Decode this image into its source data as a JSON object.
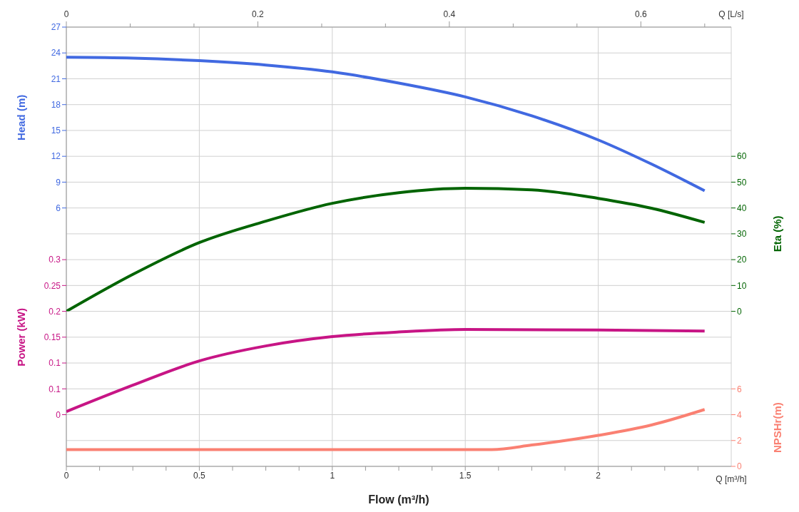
{
  "chart_data": [
    {
      "type": "line",
      "x2label": "Q [L/s]",
      "ylabel": "Head (m)",
      "xlim": [
        0,
        2.5
      ],
      "tick_labels": "y",
      "x2lim": [
        0,
        0.6944
      ],
      "x2ticks": [
        0,
        {
          "value": 0.0667,
          "label": null
        },
        {
          "value": 0.1333,
          "label": null
        },
        0.2,
        {
          "value": 0.2667,
          "label": null
        },
        {
          "value": 0.3333,
          "label": null
        },
        0.4,
        {
          "value": 0.4667,
          "label": null
        },
        {
          "value": 0.5333,
          "label": null
        },
        0.6,
        {
          "value": 0.6667,
          "label": null
        }
      ],
      "ylim": [
        6,
        27
      ],
      "yticks": [
        6,
        9,
        12,
        15,
        18,
        21,
        24,
        27
      ],
      "marker": "none",
      "line_style": "solid",
      "series": [
        {
          "color": "#4169e1",
          "x": [
            0,
            0.25,
            0.5,
            0.75,
            1,
            1.25,
            1.5,
            1.75,
            2,
            2.2,
            2.4
          ],
          "values": [
            23.5,
            23.4,
            23.1,
            22.6,
            21.8,
            20.5,
            18.9,
            16.7,
            13.9,
            11.1,
            8.0
          ]
        }
      ]
    },
    {
      "type": "line",
      "ylabel": "Eta (%)",
      "xlim": [
        0,
        2.5
      ],
      "ylim": [
        0,
        60
      ],
      "yticks": [
        0,
        10,
        20,
        30,
        40,
        50,
        60
      ],
      "tick_labels": "y",
      "marker": "none",
      "line_style": "solid",
      "series": [
        {
          "color": "#006400",
          "x": [
            0,
            0.25,
            0.5,
            0.75,
            1,
            1.25,
            1.5,
            1.75,
            2,
            2.2,
            2.4
          ],
          "values": [
            0,
            14.3,
            26.6,
            34.9,
            41.8,
            45.9,
            47.6,
            47.0,
            43.7,
            39.9,
            34.4
          ]
        }
      ]
    },
    {
      "type": "line",
      "ylabel": "Power (kW)",
      "xlim": [
        0,
        2.5
      ],
      "ylim": [
        0,
        0.3
      ],
      "yticks": [
        0,
        {
          "value": 0.05,
          "label": "0.1"
        },
        0.1,
        0.15,
        0.2,
        0.25,
        0.3
      ],
      "tick_labels": "y",
      "marker": "none",
      "line_style": "solid",
      "series": [
        {
          "color": "#c71585",
          "x": [
            0,
            0.25,
            0.5,
            0.75,
            1,
            1.25,
            1.5,
            2,
            2.4
          ],
          "values": [
            0.006,
            0.057,
            0.104,
            0.133,
            0.151,
            0.16,
            0.165,
            0.164,
            0.162
          ]
        }
      ]
    },
    {
      "type": "line",
      "xlabel": "Flow (m³/h)",
      "ylabel": "NPSHr(m)",
      "annotations": [
        "Q [m³/h]"
      ],
      "xlim": [
        0,
        2.5
      ],
      "xticks": [
        0,
        {
          "value": 0.125,
          "label": null
        },
        {
          "value": 0.25,
          "label": null
        },
        {
          "value": 0.375,
          "label": null
        },
        0.5,
        {
          "value": 0.625,
          "label": null
        },
        {
          "value": 0.75,
          "label": null
        },
        {
          "value": 0.875,
          "label": null
        },
        1,
        {
          "value": 1.125,
          "label": null
        },
        {
          "value": 1.25,
          "label": null
        },
        {
          "value": 1.375,
          "label": null
        },
        1.5,
        {
          "value": 1.625,
          "label": null
        },
        {
          "value": 1.75,
          "label": null
        },
        {
          "value": 1.875,
          "label": null
        },
        2,
        {
          "value": 2.125,
          "label": null
        },
        {
          "value": 2.25,
          "label": null
        },
        {
          "value": 2.375,
          "label": null
        }
      ],
      "ylim": [
        0,
        6
      ],
      "yticks": [
        0,
        2,
        4,
        6
      ],
      "grid": true,
      "marker": "none",
      "line_style": "solid",
      "series": [
        {
          "color": "#fa8072",
          "x": [
            0,
            0.5,
            1,
            1.5,
            1.6,
            1.75,
            2,
            2.2,
            2.4
          ],
          "values": [
            1.3,
            1.3,
            1.3,
            1.3,
            1.3,
            1.65,
            2.4,
            3.2,
            4.4
          ]
        }
      ]
    }
  ]
}
